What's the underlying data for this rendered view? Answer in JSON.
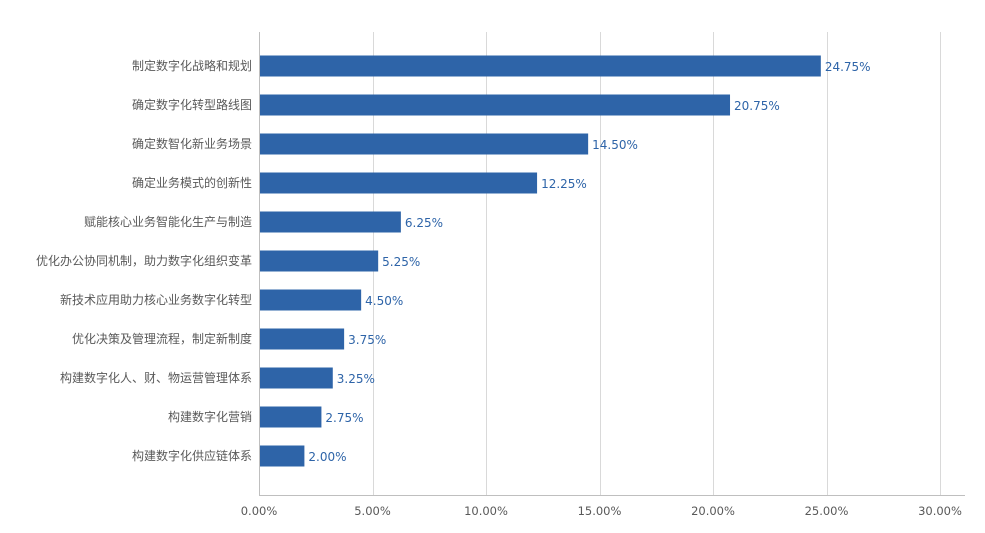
{
  "chart_data": {
    "type": "bar",
    "orientation": "horizontal",
    "categories": [
      "制定数字化战略和规划",
      "确定数字化转型路线图",
      "确定数智化新业务场景",
      "确定业务模式的创新性",
      "赋能核心业务智能化生产与制造",
      "优化办公协同机制，助力数字化组织变革",
      "新技术应用助力核心业务数字化转型",
      "优化决策及管理流程，制定新制度",
      "构建数字化人、财、物运营管理体系",
      "构建数字化营销",
      "构建数字化供应链体系"
    ],
    "values": [
      24.75,
      20.75,
      14.5,
      12.25,
      6.25,
      5.25,
      4.5,
      3.75,
      3.25,
      2.75,
      2.0
    ],
    "data_labels": [
      "24.75%",
      "20.75%",
      "14.50%",
      "12.25%",
      "6.25%",
      "5.25%",
      "4.50%",
      "3.75%",
      "3.25%",
      "2.75%",
      "2.00%"
    ],
    "xlim": [
      0,
      30
    ],
    "xticks": [
      0,
      5,
      10,
      15,
      20,
      25,
      30
    ],
    "xtick_labels": [
      "0.00%",
      "5.00%",
      "10.00%",
      "15.00%",
      "20.00%",
      "25.00%",
      "30.00%"
    ],
    "title": "",
    "xlabel": "",
    "ylabel": "",
    "grid": "vertical",
    "legend": "none",
    "bar_color": "#2e64a8",
    "label_color": "#2e64a8"
  }
}
